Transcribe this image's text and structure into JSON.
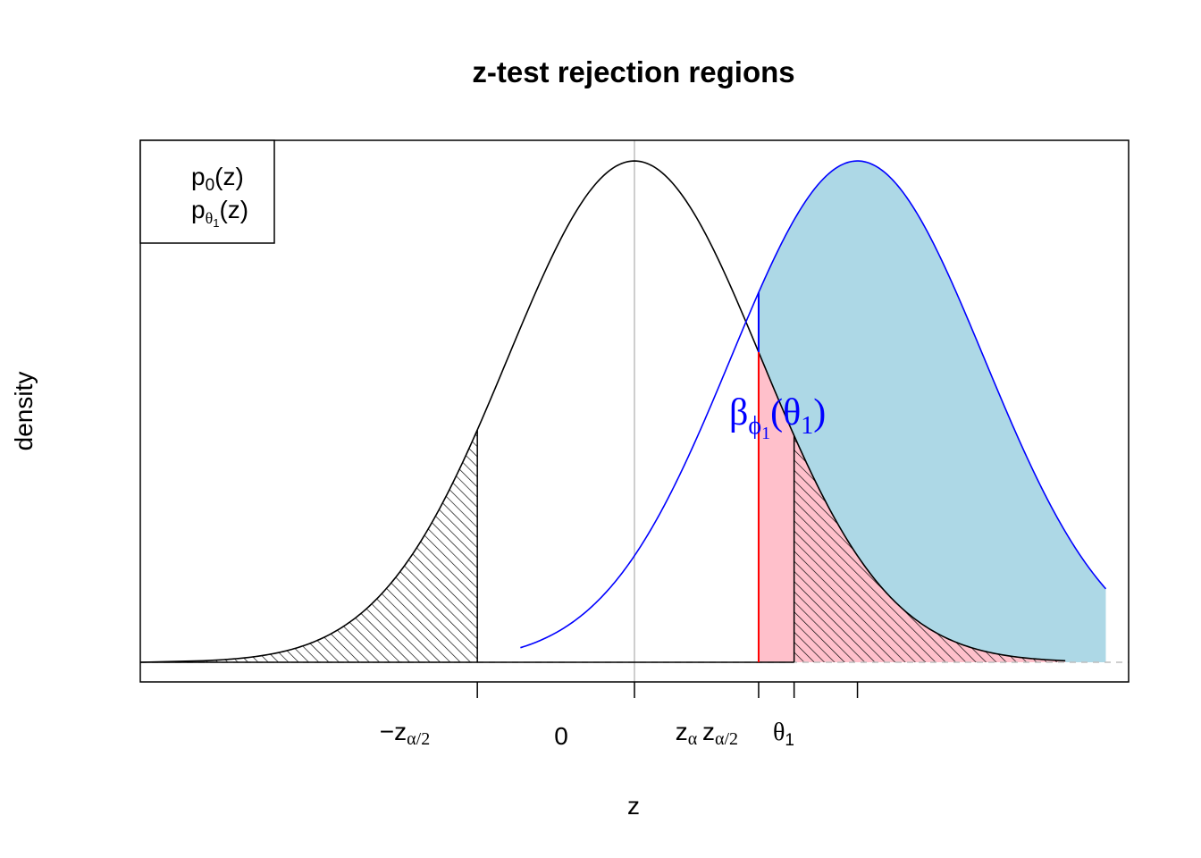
{
  "chart_data": {
    "type": "area",
    "title": "z-test rejection regions",
    "xlabel": "z",
    "ylabel": "density",
    "xlim": [
      -3.9,
      3.9
    ],
    "ylim": [
      0,
      0.399
    ],
    "grid": false,
    "legend_position": "top-left",
    "legend": [
      {
        "base": "p",
        "sub": "0",
        "suffix": "(z)"
      },
      {
        "base": "p",
        "sub": "θ",
        "subsub": "1",
        "suffix": "(z)"
      }
    ],
    "series": [
      {
        "name": "p_0(z)",
        "distribution": "normal",
        "mean": 0,
        "sd": 1,
        "color": "#000000"
      },
      {
        "name": "p_theta1(z)",
        "distribution": "normal",
        "mean": 1.76,
        "sd": 1,
        "color": "#0000ff",
        "fill": "#add8e6"
      }
    ],
    "critical_values": {
      "neg_z_alpha_half": -1.24,
      "zero": 0,
      "z_alpha": 0.98,
      "z_alpha_half": 1.26,
      "theta1": 1.76
    },
    "tick_labels": [
      {
        "main": "−z",
        "sub": "α/2"
      },
      {
        "main": "0"
      },
      {
        "main": "z",
        "sub": "α"
      },
      {
        "main": "z",
        "sub": "α/2"
      },
      {
        "main": "θ",
        "sub": "1"
      }
    ],
    "annotation": {
      "greek": "β",
      "sub": "ϕ",
      "subsub": "1",
      "open": "(",
      "theta": "θ",
      "theta_sub": "1",
      "close": ")",
      "color": "#0000ff"
    },
    "colors": {
      "power_fill": "#add8e6",
      "alpha_fill": "#ffc0cb",
      "curve1": "#0000ff",
      "critical_line": "#ff0000",
      "zero_line": "#bebebe",
      "baseline": "#bebebe"
    }
  }
}
